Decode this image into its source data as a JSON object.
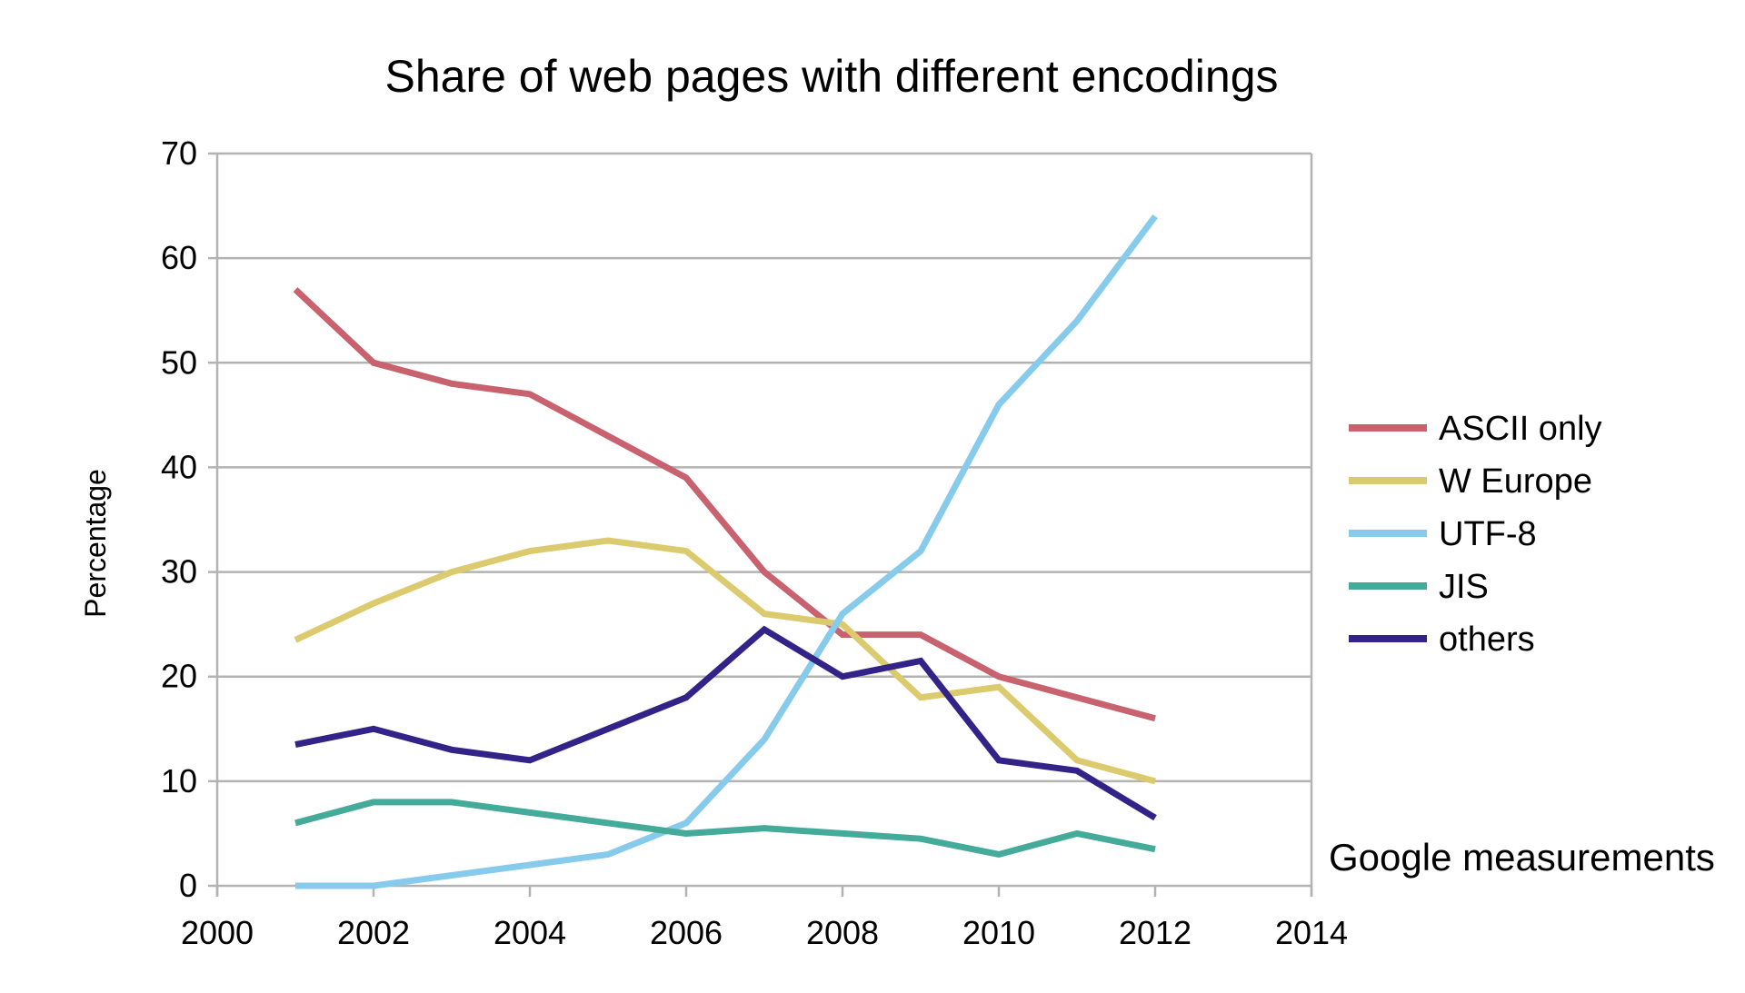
{
  "chart_data": {
    "type": "line",
    "title": "Share of web pages with different encodings",
    "ylabel": "Percentage",
    "xlabel": "",
    "annotation": "Google measurements",
    "xlim": [
      2000,
      2014
    ],
    "ylim": [
      0,
      70
    ],
    "xticks": [
      2000,
      2002,
      2004,
      2006,
      2008,
      2010,
      2012,
      2014
    ],
    "yticks": [
      0,
      10,
      20,
      30,
      40,
      50,
      60,
      70
    ],
    "grid": "horizontal",
    "legend_position": "right",
    "x": [
      2001,
      2002,
      2003,
      2004,
      2005,
      2006,
      2007,
      2008,
      2009,
      2010,
      2011,
      2012
    ],
    "series": [
      {
        "name": "ASCII only",
        "color": "#c8626f",
        "values": [
          57,
          50,
          48,
          47,
          43,
          39,
          30,
          24,
          24,
          20,
          18,
          16
        ]
      },
      {
        "name": "W Europe",
        "color": "#dccb6e",
        "values": [
          23.5,
          27,
          30,
          32,
          33,
          32,
          26,
          25,
          18,
          19,
          12,
          10
        ]
      },
      {
        "name": "UTF-8",
        "color": "#87cbec",
        "values": [
          0,
          0,
          1,
          2,
          3,
          6,
          14,
          26,
          32,
          46,
          54,
          64
        ]
      },
      {
        "name": "JIS",
        "color": "#44aa99",
        "values": [
          6,
          8,
          8,
          7,
          6,
          5,
          5.5,
          5,
          4.5,
          3,
          5,
          3.5
        ]
      },
      {
        "name": "others",
        "color": "#332288",
        "values": [
          13.5,
          15,
          13,
          12,
          15,
          18,
          24.5,
          20,
          21.5,
          12,
          11,
          6.5
        ]
      }
    ]
  }
}
